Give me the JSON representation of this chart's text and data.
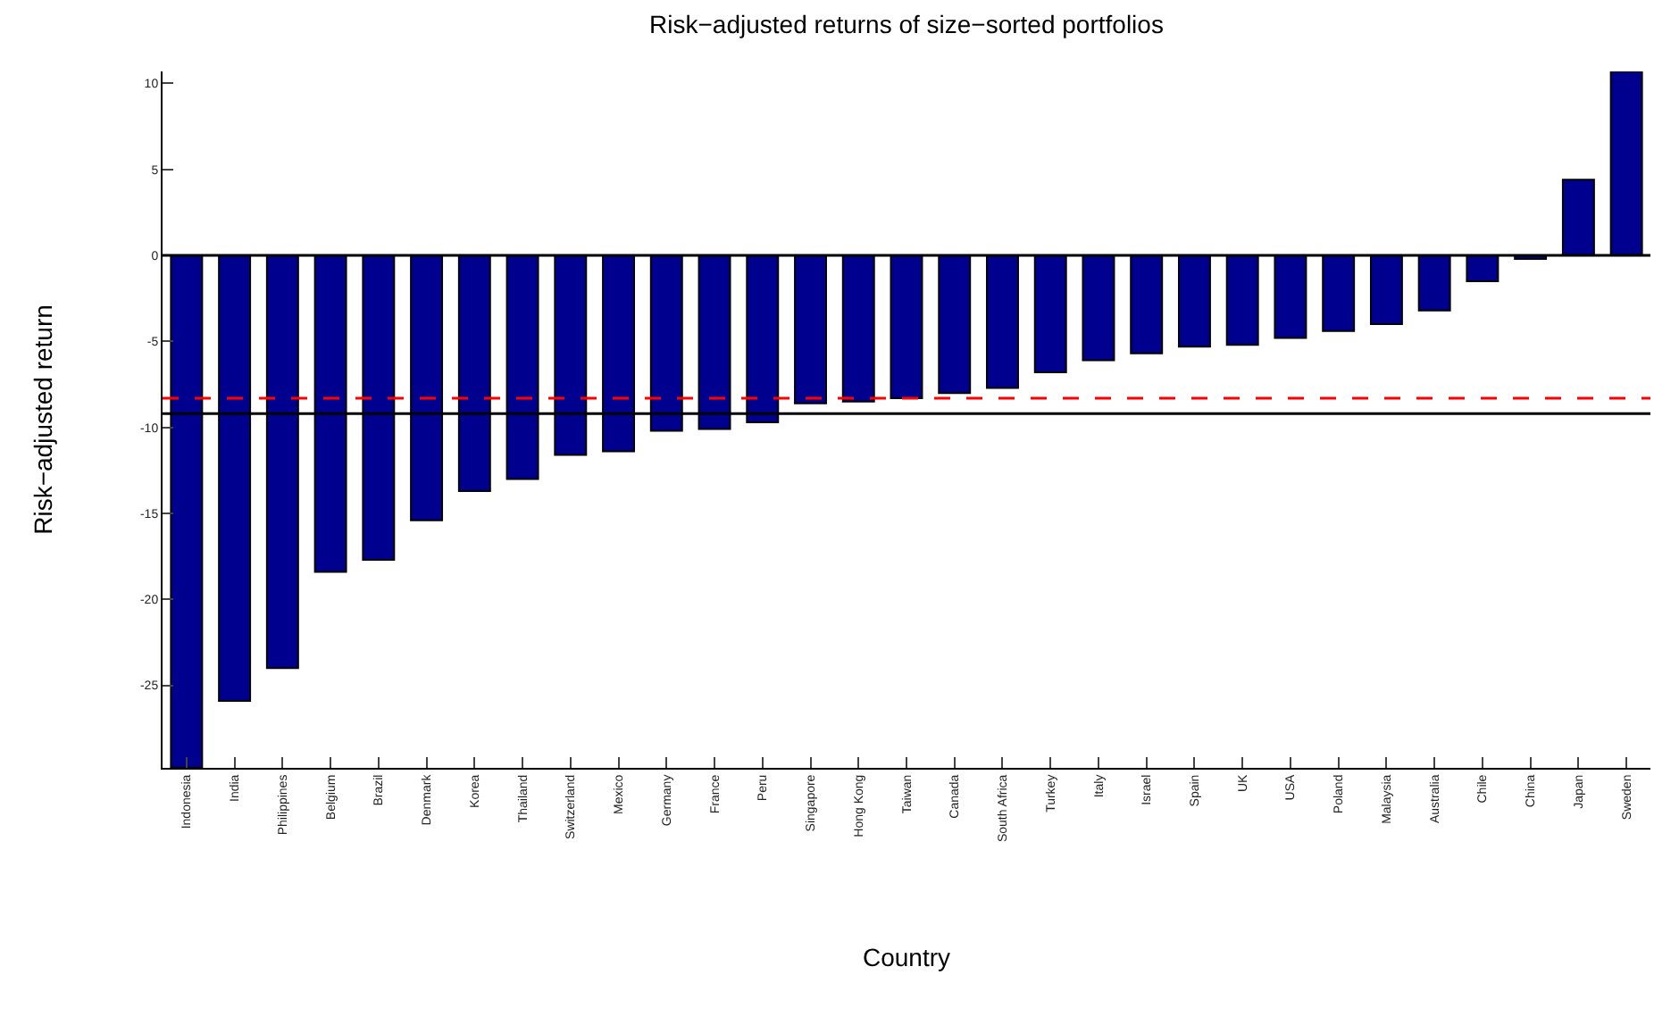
{
  "chart_data": {
    "type": "bar",
    "title": "Risk−adjusted returns of size−sorted portfolios",
    "xlabel": "Country",
    "ylabel": "Risk−adjusted return",
    "categories": [
      "Indonesia",
      "India",
      "Philippines",
      "Belgium",
      "Brazil",
      "Denmark",
      "Korea",
      "Thailand",
      "Switzerland",
      "Mexico",
      "Germany",
      "France",
      "Peru",
      "Singapore",
      "Hong Kong",
      "Taiwan",
      "Canada",
      "South Africa",
      "Turkey",
      "Italy",
      "Israel",
      "Spain",
      "UK",
      "USA",
      "Poland",
      "Malaysia",
      "Australia",
      "Chile",
      "China",
      "Japan",
      "Sweden"
    ],
    "values": [
      -29.8,
      -25.9,
      -24.0,
      -18.4,
      -17.7,
      -15.4,
      -13.7,
      -13.0,
      -11.6,
      -11.4,
      -10.2,
      -10.1,
      -9.7,
      -8.6,
      -8.5,
      -8.3,
      -8.0,
      -7.7,
      -6.8,
      -6.1,
      -5.7,
      -5.3,
      -5.2,
      -4.8,
      -4.4,
      -4.0,
      -3.2,
      -1.5,
      -0.2,
      4.4,
      10.7
    ],
    "color": "#00008f",
    "ylim": [
      -29.8,
      10.7
    ],
    "yticks": [
      -25,
      -20,
      -15,
      -10,
      -5,
      0,
      5,
      10
    ],
    "ref_lines": [
      {
        "axis": "y",
        "value": -9.2,
        "color": "#000000",
        "line_style": "solid"
      },
      {
        "axis": "y",
        "value": -8.3,
        "color": "#ff0000",
        "line_style": "dashed"
      }
    ],
    "data_labels": false
  }
}
